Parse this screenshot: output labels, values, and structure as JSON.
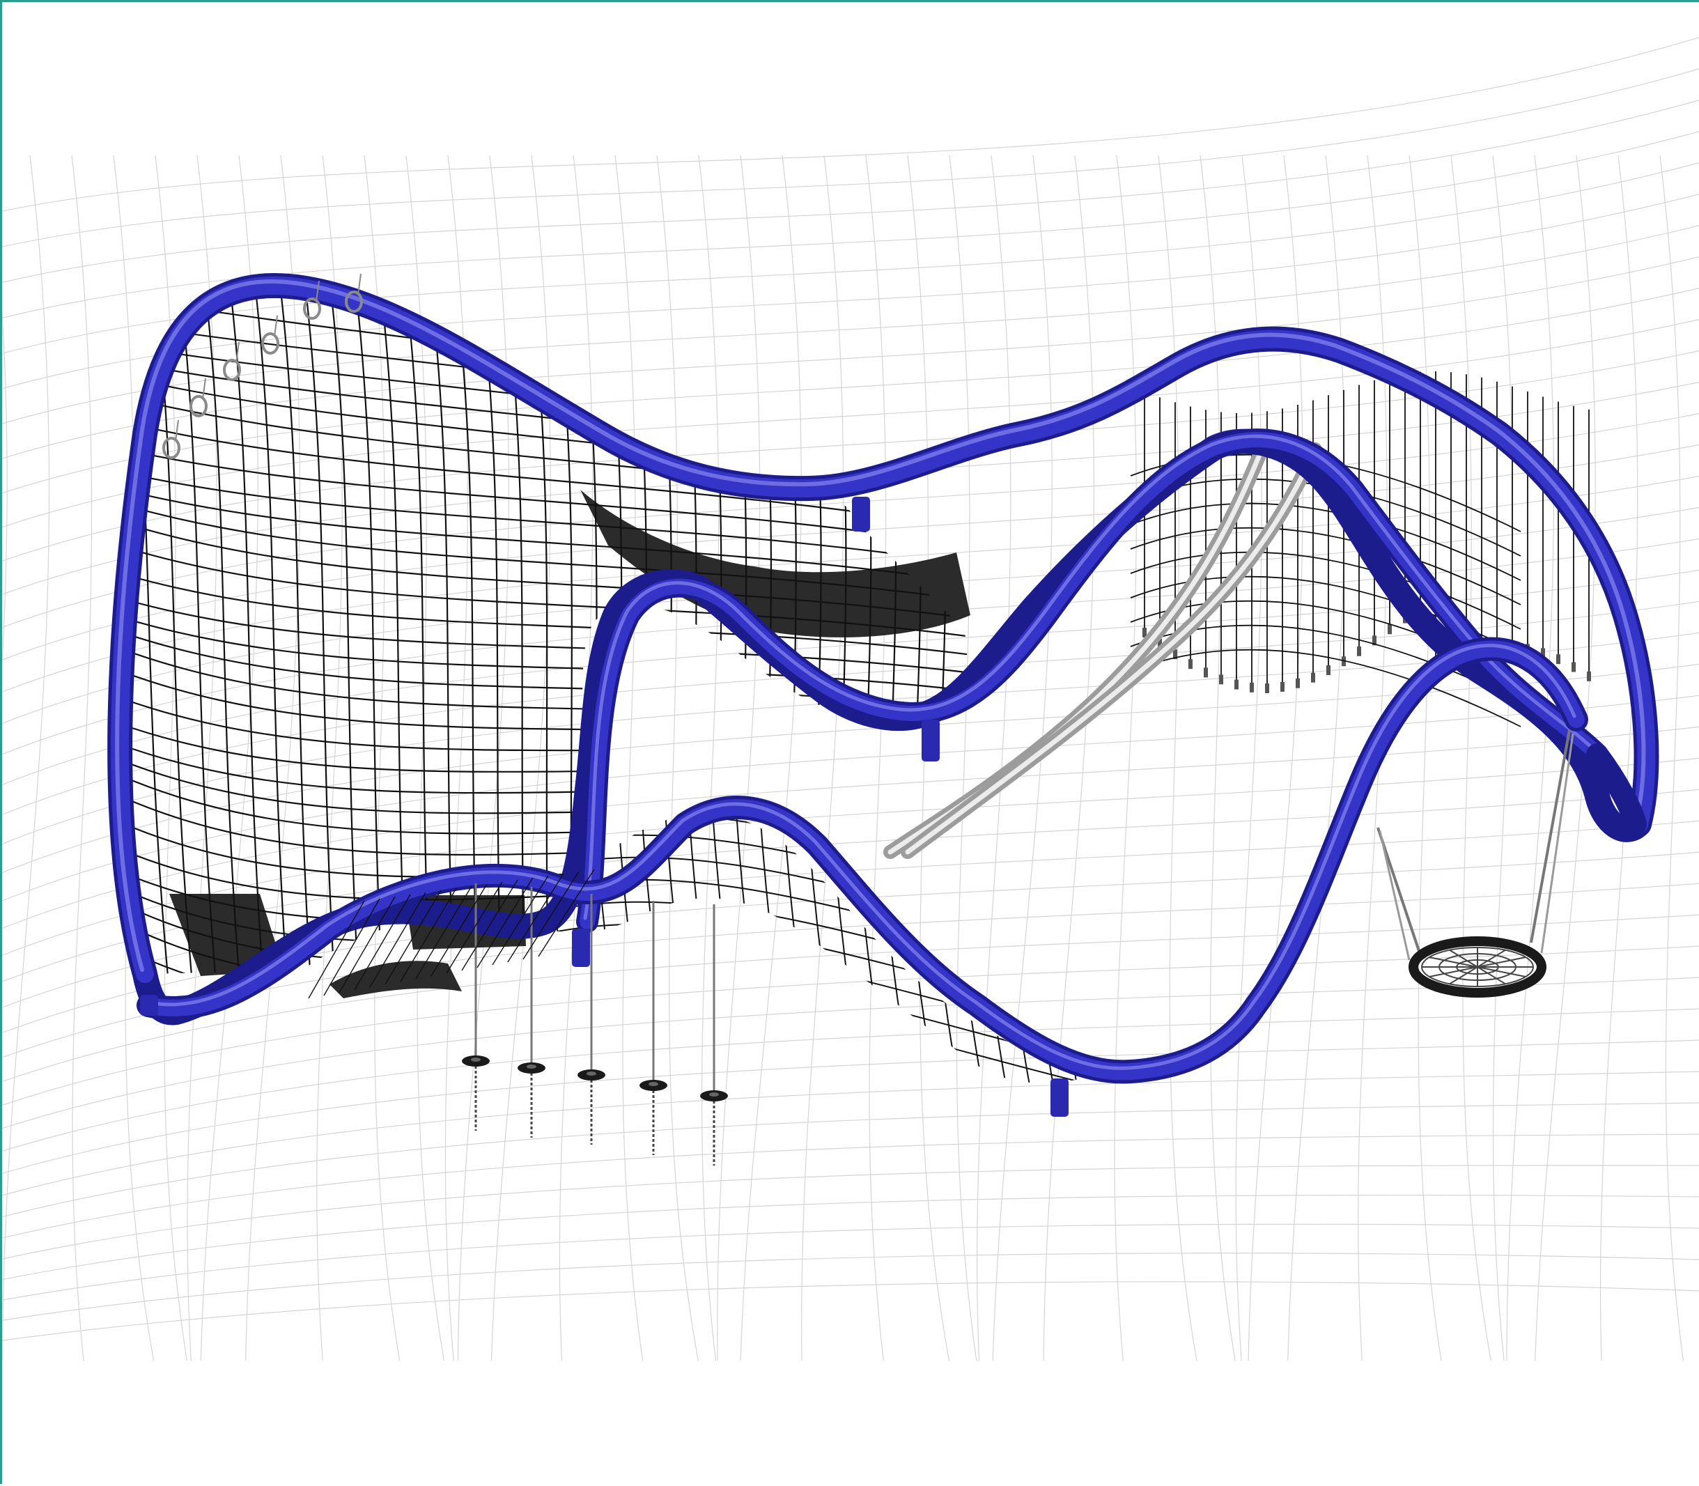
{
  "drawing": {
    "colors": {
      "frame_tube": "#3434c8",
      "frame_tube_dark": "#1c1c8c",
      "frame_tube_highlight": "#7a7ae8",
      "net_rope": "#111111",
      "ground_grid": "#d4d4d4",
      "solid_panel": "#2b2b2b",
      "slide": "#b9b9b9",
      "slide_highlight": "#e9e9e9",
      "chain": "#777777",
      "border_accent": "#2a9d8f"
    },
    "icons": {
      "swing_seat": "nest-swing-icon",
      "stepping_disc": "stepping-disc-icon",
      "hand_ring": "hand-ring-icon"
    },
    "counts": {
      "hanging_disc_ropes": 5,
      "hand_rings": 6,
      "solid_panels": 4
    }
  }
}
